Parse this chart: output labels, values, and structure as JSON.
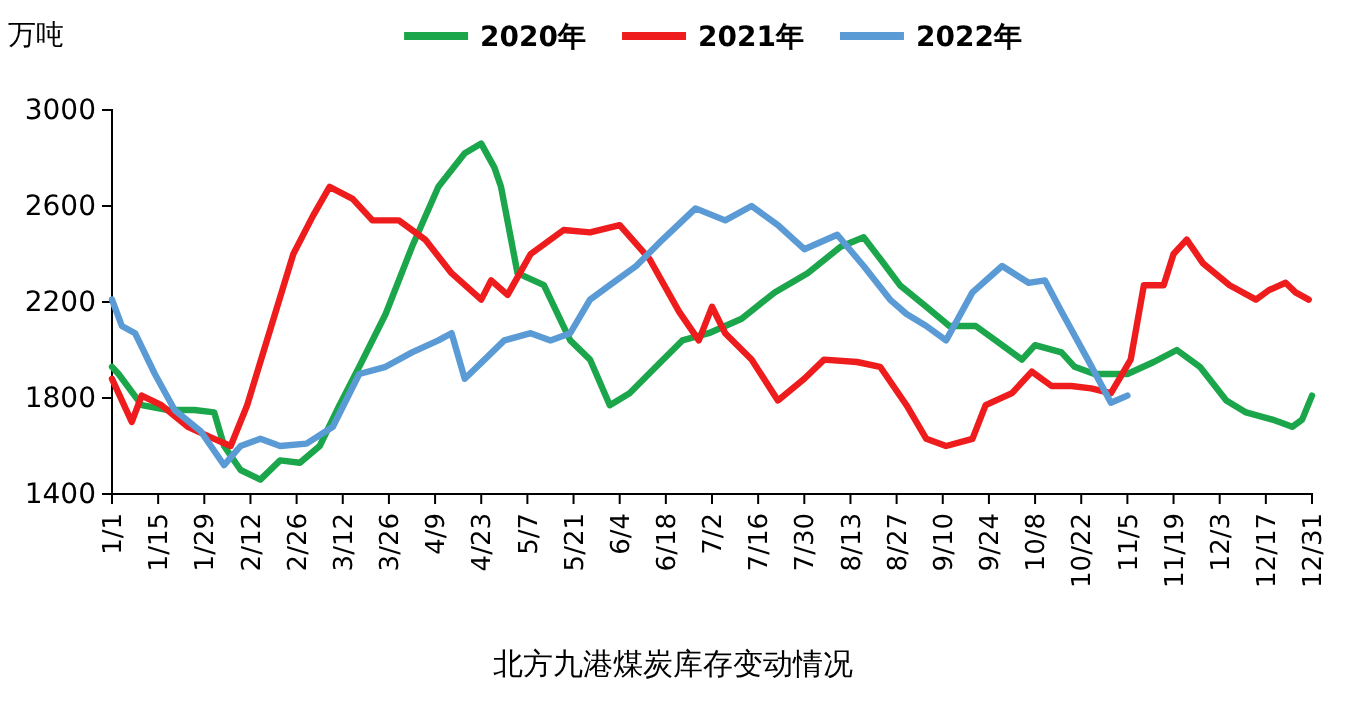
{
  "chart_data": {
    "type": "line",
    "title": "北方九港煤炭库存变动情况",
    "ylabel": "万吨",
    "legend": "top",
    "grid": false,
    "marker": "none",
    "line_style": "solid",
    "xlim": [
      "--01-01",
      "--12-31"
    ],
    "xticks": [
      {
        "value": "--01-01",
        "label": "1/1"
      },
      {
        "value": "--01-15",
        "label": "1/15"
      },
      {
        "value": "--01-29",
        "label": "1/29"
      },
      {
        "value": "--02-12",
        "label": "2/12"
      },
      {
        "value": "--02-26",
        "label": "2/26"
      },
      {
        "value": "--03-12",
        "label": "3/12"
      },
      {
        "value": "--03-26",
        "label": "3/26"
      },
      {
        "value": "--04-09",
        "label": "4/9"
      },
      {
        "value": "--04-23",
        "label": "4/23"
      },
      {
        "value": "--05-07",
        "label": "5/7"
      },
      {
        "value": "--05-21",
        "label": "5/21"
      },
      {
        "value": "--06-04",
        "label": "6/4"
      },
      {
        "value": "--06-18",
        "label": "6/18"
      },
      {
        "value": "--07-02",
        "label": "7/2"
      },
      {
        "value": "--07-16",
        "label": "7/16"
      },
      {
        "value": "--07-30",
        "label": "7/30"
      },
      {
        "value": "--08-13",
        "label": "8/13"
      },
      {
        "value": "--08-27",
        "label": "8/27"
      },
      {
        "value": "--09-10",
        "label": "9/10"
      },
      {
        "value": "--09-24",
        "label": "9/24"
      },
      {
        "value": "--10-08",
        "label": "10/8"
      },
      {
        "value": "--10-22",
        "label": "10/22"
      },
      {
        "value": "--11-05",
        "label": "11/5"
      },
      {
        "value": "--11-19",
        "label": "11/19"
      },
      {
        "value": "--12-03",
        "label": "12/3"
      },
      {
        "value": "--12-17",
        "label": "12/17"
      },
      {
        "value": "--12-31",
        "label": "12/31"
      }
    ],
    "ylim": [
      1400,
      3000
    ],
    "yticks": [
      1400,
      1800,
      2200,
      2600,
      3000
    ],
    "series": [
      {
        "name": "2020年",
        "color": "#1ba64b",
        "x": [
          "--01-01",
          "--01-03",
          "--01-10",
          "--01-18",
          "--01-26",
          "--02-01",
          "--02-04",
          "--02-09",
          "--02-15",
          "--02-21",
          "--02-27",
          "--03-05",
          "--03-11",
          "--03-17",
          "--03-25",
          "--04-02",
          "--04-10",
          "--04-18",
          "--04-23",
          "--04-27",
          "--04-29",
          "--05-04",
          "--05-12",
          "--05-20",
          "--05-26",
          "--06-01",
          "--06-07",
          "--06-15",
          "--06-23",
          "--07-01",
          "--07-11",
          "--07-21",
          "--07-31",
          "--08-10",
          "--08-17",
          "--08-22",
          "--08-28",
          "--09-05",
          "--09-12",
          "--09-20",
          "--09-28",
          "--10-04",
          "--10-08",
          "--10-16",
          "--10-20",
          "--10-26",
          "--11-05",
          "--11-13",
          "--11-20",
          "--11-27",
          "--12-05",
          "--12-11",
          "--12-19",
          "--12-25",
          "--12-28",
          "--12-31"
        ],
        "values": [
          1930,
          1900,
          1770,
          1750,
          1750,
          1740,
          1600,
          1500,
          1460,
          1540,
          1530,
          1600,
          1770,
          1930,
          2150,
          2430,
          2680,
          2820,
          2860,
          2760,
          2680,
          2320,
          2270,
          2040,
          1960,
          1770,
          1820,
          1930,
          2040,
          2070,
          2130,
          2240,
          2320,
          2430,
          2470,
          2380,
          2270,
          2180,
          2100,
          2100,
          2020,
          1960,
          2020,
          1990,
          1930,
          1900,
          1900,
          1950,
          2000,
          1930,
          1790,
          1740,
          1710,
          1680,
          1710,
          1810
        ]
      },
      {
        "name": "2021年",
        "color": "#ee1c1c",
        "x": [
          "--01-01",
          "--01-07",
          "--01-10",
          "--01-16",
          "--01-24",
          "--02-01",
          "--02-06",
          "--02-11",
          "--02-19",
          "--02-25",
          "--03-03",
          "--03-08",
          "--03-15",
          "--03-21",
          "--03-29",
          "--04-06",
          "--04-14",
          "--04-23",
          "--04-26",
          "--05-01",
          "--05-08",
          "--05-18",
          "--05-26",
          "--06-04",
          "--06-13",
          "--06-22",
          "--06-28",
          "--07-02",
          "--07-06",
          "--07-14",
          "--07-22",
          "--07-30",
          "--08-05",
          "--08-15",
          "--08-22",
          "--08-30",
          "--09-05",
          "--09-11",
          "--09-19",
          "--09-23",
          "--10-01",
          "--10-07",
          "--10-13",
          "--10-19",
          "--10-25",
          "--10-31",
          "--11-06",
          "--11-10",
          "--11-16",
          "--11-19",
          "--11-23",
          "--11-28",
          "--12-06",
          "--12-14",
          "--12-18",
          "--12-23",
          "--12-26",
          "--12-30"
        ],
        "values": [
          1880,
          1700,
          1810,
          1770,
          1680,
          1630,
          1600,
          1770,
          2130,
          2400,
          2560,
          2680,
          2630,
          2540,
          2540,
          2460,
          2320,
          2210,
          2290,
          2230,
          2400,
          2500,
          2490,
          2520,
          2380,
          2160,
          2040,
          2180,
          2070,
          1960,
          1790,
          1880,
          1960,
          1950,
          1930,
          1770,
          1630,
          1600,
          1630,
          1770,
          1820,
          1910,
          1850,
          1850,
          1840,
          1820,
          1960,
          2270,
          2270,
          2400,
          2460,
          2360,
          2270,
          2210,
          2250,
          2280,
          2240,
          2210
        ]
      },
      {
        "name": "2022年",
        "color": "#5b9bd5",
        "x": [
          "--01-01",
          "--01-04",
          "--01-08",
          "--01-14",
          "--01-20",
          "--01-28",
          "--02-04",
          "--02-09",
          "--02-15",
          "--02-21",
          "--03-01",
          "--03-09",
          "--03-17",
          "--03-25",
          "--04-02",
          "--04-10",
          "--04-14",
          "--04-18",
          "--04-24",
          "--04-30",
          "--05-08",
          "--05-14",
          "--05-20",
          "--05-26",
          "--06-01",
          "--06-09",
          "--06-17",
          "--06-27",
          "--07-06",
          "--07-14",
          "--07-22",
          "--07-30",
          "--08-09",
          "--08-17",
          "--08-25",
          "--08-30",
          "--09-05",
          "--09-11",
          "--09-19",
          "--09-28",
          "--10-06",
          "--10-11",
          "--10-16",
          "--10-24",
          "--10-31",
          "--11-05"
        ],
        "values": [
          2210,
          2100,
          2070,
          1900,
          1750,
          1660,
          1520,
          1600,
          1630,
          1600,
          1610,
          1680,
          1900,
          1930,
          1990,
          2040,
          2070,
          1880,
          1960,
          2040,
          2070,
          2040,
          2070,
          2210,
          2270,
          2350,
          2460,
          2590,
          2540,
          2600,
          2520,
          2420,
          2480,
          2350,
          2210,
          2150,
          2100,
          2040,
          2240,
          2350,
          2280,
          2290,
          2160,
          1960,
          1780,
          1810
        ]
      }
    ]
  }
}
